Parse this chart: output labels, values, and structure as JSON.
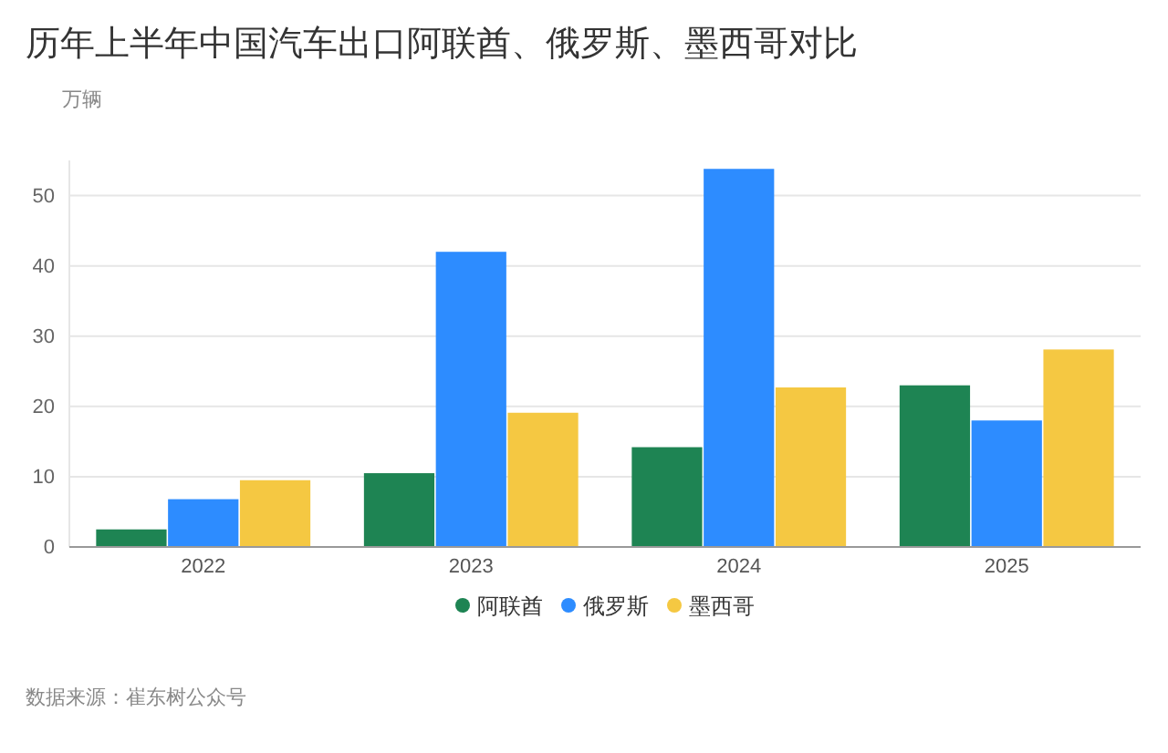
{
  "chart_data": {
    "type": "bar",
    "title": "历年上半年中国汽车出口阿联酋、俄罗斯、墨西哥对比",
    "ylabel": "万辆",
    "categories": [
      "2022",
      "2023",
      "2024",
      "2025"
    ],
    "series": [
      {
        "name": "阿联酋",
        "color": "#1e8453",
        "values": [
          2.5,
          10.5,
          14.2,
          23.0
        ]
      },
      {
        "name": "俄罗斯",
        "color": "#2d8cff",
        "values": [
          6.8,
          42.0,
          53.8,
          18.0
        ]
      },
      {
        "name": "墨西哥",
        "color": "#f5c842",
        "values": [
          9.5,
          19.1,
          22.7,
          28.1
        ]
      }
    ],
    "ylim": [
      0,
      55
    ],
    "yticks": [
      0,
      10,
      20,
      30,
      40,
      50
    ],
    "grid": "y",
    "legend": "bottom",
    "annotations": [
      "数据来源：崔东树公众号"
    ]
  }
}
